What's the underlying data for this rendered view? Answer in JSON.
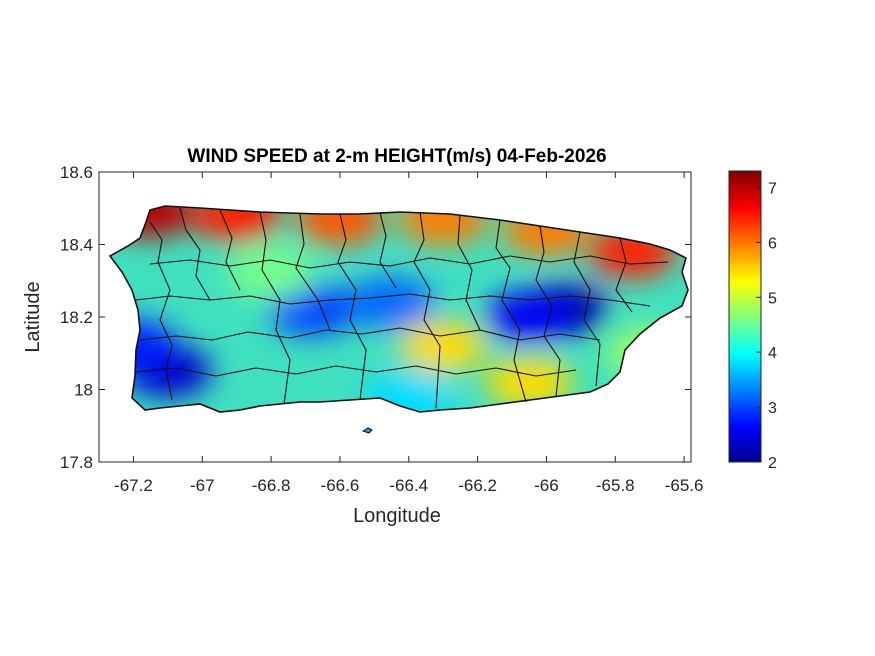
{
  "figure": {
    "title": "WIND SPEED at 2-m HEIGHT(m/s) 04-Feb-2026",
    "xlabel": "Longitude",
    "ylabel": "Latitude"
  },
  "map": {
    "x_range": [
      -67.3,
      -65.58
    ],
    "y_range": [
      17.8,
      18.6
    ],
    "x_ticks": [
      "-67.2",
      "-67",
      "-66.8",
      "-66.6",
      "-66.4",
      "-66.2",
      "-66",
      "-65.8",
      "-65.6"
    ],
    "y_ticks": [
      "18.6",
      "18.4",
      "18.2",
      "18",
      "17.8"
    ],
    "colorbar": {
      "label_ticks": [
        "7",
        "6",
        "5",
        "4",
        "3",
        "2"
      ],
      "range": [
        2,
        7.3
      ],
      "colormap": "jet"
    },
    "field_values": [
      {
        "lon": -67.15,
        "lat": 18.49,
        "speed": 7.0
      },
      {
        "lon": -66.9,
        "lat": 18.48,
        "speed": 6.5
      },
      {
        "lon": -66.6,
        "lat": 18.47,
        "speed": 6.2
      },
      {
        "lon": -66.3,
        "lat": 18.47,
        "speed": 6.0
      },
      {
        "lon": -66.0,
        "lat": 18.44,
        "speed": 6.0
      },
      {
        "lon": -65.75,
        "lat": 18.38,
        "speed": 6.5
      },
      {
        "lon": -65.95,
        "lat": 18.22,
        "speed": 2.2
      },
      {
        "lon": -66.05,
        "lat": 18.2,
        "speed": 2.6
      },
      {
        "lon": -66.45,
        "lat": 18.24,
        "speed": 3.2
      },
      {
        "lon": -66.68,
        "lat": 18.22,
        "speed": 3.0
      },
      {
        "lon": -67.1,
        "lat": 18.05,
        "speed": 2.4
      },
      {
        "lon": -67.2,
        "lat": 18.12,
        "speed": 2.8
      },
      {
        "lon": -66.3,
        "lat": 18.12,
        "speed": 5.5
      },
      {
        "lon": -66.05,
        "lat": 18.02,
        "speed": 5.5
      },
      {
        "lon": -65.7,
        "lat": 18.1,
        "speed": 4.8
      },
      {
        "lon": -66.8,
        "lat": 18.32,
        "speed": 4.6
      },
      {
        "lon": -66.4,
        "lat": 17.98,
        "speed": 3.8
      }
    ]
  }
}
